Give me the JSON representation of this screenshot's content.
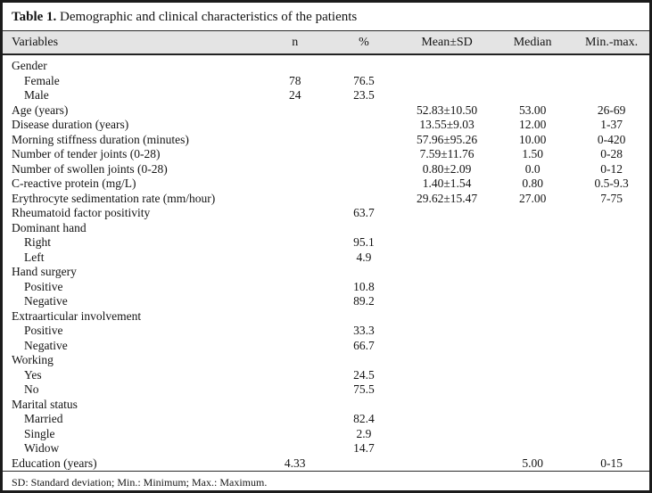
{
  "table": {
    "title": {
      "label_bold": "Table 1.",
      "label_rest": " Demographic and clinical characteristics of the patients"
    },
    "columns": [
      "Variables",
      "n",
      "%",
      "Mean±SD",
      "Median",
      "Min.-max."
    ],
    "rows": [
      {
        "label": "Gender",
        "indent": false,
        "n": "",
        "pct": "",
        "mean_sd": "",
        "median": "",
        "min_max": ""
      },
      {
        "label": "Female",
        "indent": true,
        "n": "78",
        "pct": "76.5",
        "mean_sd": "",
        "median": "",
        "min_max": ""
      },
      {
        "label": "Male",
        "indent": true,
        "n": "24",
        "pct": "23.5",
        "mean_sd": "",
        "median": "",
        "min_max": ""
      },
      {
        "label": "Age (years)",
        "indent": false,
        "n": "",
        "pct": "",
        "mean_sd": "52.83±10.50",
        "median": "53.00",
        "min_max": "26-69"
      },
      {
        "label": "Disease duration (years)",
        "indent": false,
        "n": "",
        "pct": "",
        "mean_sd": "13.55±9.03",
        "median": "12.00",
        "min_max": "1-37"
      },
      {
        "label": "Morning stiffness duration (minutes)",
        "indent": false,
        "n": "",
        "pct": "",
        "mean_sd": "57.96±95.26",
        "median": "10.00",
        "min_max": "0-420"
      },
      {
        "label": "Number of tender joints (0-28)",
        "indent": false,
        "n": "",
        "pct": "",
        "mean_sd": "7.59±11.76",
        "median": "1.50",
        "min_max": "0-28"
      },
      {
        "label": "Number of swollen joints (0-28)",
        "indent": false,
        "n": "",
        "pct": "",
        "mean_sd": "0.80±2.09",
        "median": "0.0",
        "min_max": "0-12"
      },
      {
        "label": "C-reactive protein (mg/L)",
        "indent": false,
        "n": "",
        "pct": "",
        "mean_sd": "1.40±1.54",
        "median": "0.80",
        "min_max": "0.5-9.3"
      },
      {
        "label": "Erythrocyte sedimentation rate (mm/hour)",
        "indent": false,
        "n": "",
        "pct": "",
        "mean_sd": "29.62±15.47",
        "median": "27.00",
        "min_max": "7-75"
      },
      {
        "label": "Rheumatoid factor positivity",
        "indent": false,
        "n": "",
        "pct": "63.7",
        "mean_sd": "",
        "median": "",
        "min_max": ""
      },
      {
        "label": "Dominant hand",
        "indent": false,
        "n": "",
        "pct": "",
        "mean_sd": "",
        "median": "",
        "min_max": ""
      },
      {
        "label": "Right",
        "indent": true,
        "n": "",
        "pct": "95.1",
        "mean_sd": "",
        "median": "",
        "min_max": ""
      },
      {
        "label": "Left",
        "indent": true,
        "n": "",
        "pct": "4.9",
        "mean_sd": "",
        "median": "",
        "min_max": ""
      },
      {
        "label": "Hand surgery",
        "indent": false,
        "n": "",
        "pct": "",
        "mean_sd": "",
        "median": "",
        "min_max": ""
      },
      {
        "label": "Positive",
        "indent": true,
        "n": "",
        "pct": "10.8",
        "mean_sd": "",
        "median": "",
        "min_max": ""
      },
      {
        "label": "Negative",
        "indent": true,
        "n": "",
        "pct": "89.2",
        "mean_sd": "",
        "median": "",
        "min_max": ""
      },
      {
        "label": "Extraarticular involvement",
        "indent": false,
        "n": "",
        "pct": "",
        "mean_sd": "",
        "median": "",
        "min_max": ""
      },
      {
        "label": "Positive",
        "indent": true,
        "n": "",
        "pct": "33.3",
        "mean_sd": "",
        "median": "",
        "min_max": ""
      },
      {
        "label": "Negative",
        "indent": true,
        "n": "",
        "pct": "66.7",
        "mean_sd": "",
        "median": "",
        "min_max": ""
      },
      {
        "label": "Working",
        "indent": false,
        "n": "",
        "pct": "",
        "mean_sd": "",
        "median": "",
        "min_max": ""
      },
      {
        "label": "Yes",
        "indent": true,
        "n": "",
        "pct": "24.5",
        "mean_sd": "",
        "median": "",
        "min_max": ""
      },
      {
        "label": "No",
        "indent": true,
        "n": "",
        "pct": "75.5",
        "mean_sd": "",
        "median": "",
        "min_max": ""
      },
      {
        "label": "Marital status",
        "indent": false,
        "n": "",
        "pct": "",
        "mean_sd": "",
        "median": "",
        "min_max": ""
      },
      {
        "label": "Married",
        "indent": true,
        "n": "",
        "pct": "82.4",
        "mean_sd": "",
        "median": "",
        "min_max": ""
      },
      {
        "label": "Single",
        "indent": true,
        "n": "",
        "pct": "2.9",
        "mean_sd": "",
        "median": "",
        "min_max": ""
      },
      {
        "label": "Widow",
        "indent": true,
        "n": "",
        "pct": "14.7",
        "mean_sd": "",
        "median": "",
        "min_max": ""
      },
      {
        "label": "Education (years)",
        "indent": false,
        "n": "4.33",
        "pct": "",
        "mean_sd": "",
        "median": "5.00",
        "min_max": "0-15"
      }
    ],
    "footnote": "SD: Standard deviation; Min.: Minimum; Max.: Maximum."
  },
  "colors": {
    "header_band": "#e4e4e4",
    "frame_border": "#1b1b1b",
    "text": "#141414"
  }
}
